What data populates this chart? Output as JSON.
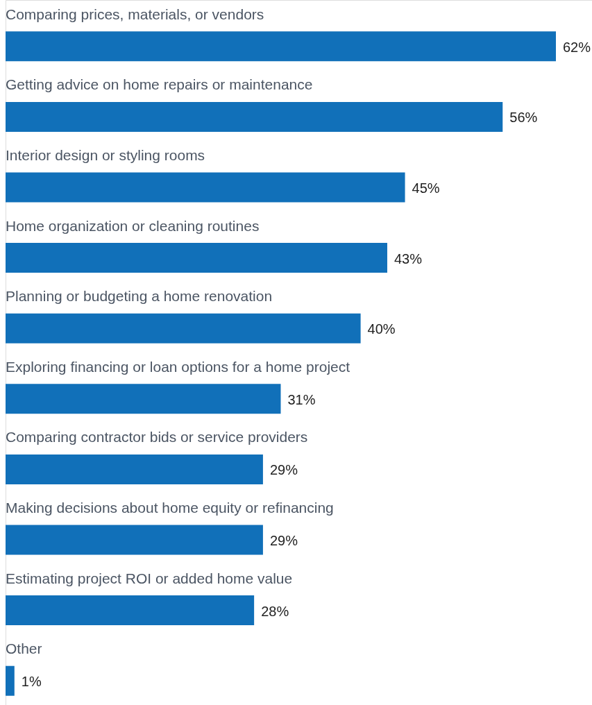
{
  "chart_data": {
    "type": "bar",
    "orientation": "horizontal",
    "data_labels": true,
    "categories": [
      "Comparing prices, materials, or vendors",
      "Getting advice on home repairs or maintenance",
      "Interior design or styling rooms",
      "Home organization or cleaning routines",
      "Planning or budgeting a home renovation",
      "Exploring financing or loan options for a home project",
      "Comparing contractor bids or service providers",
      "Making decisions about home equity or refinancing",
      "Estimating project ROI or added home value",
      "Other"
    ],
    "values": [
      62,
      56,
      45,
      43,
      40,
      31,
      29,
      29,
      28,
      1
    ],
    "value_labels": [
      "62%",
      "56%",
      "45%",
      "43%",
      "40%",
      "31%",
      "29%",
      "29%",
      "28%",
      "1%"
    ],
    "color": "#1170b9"
  }
}
